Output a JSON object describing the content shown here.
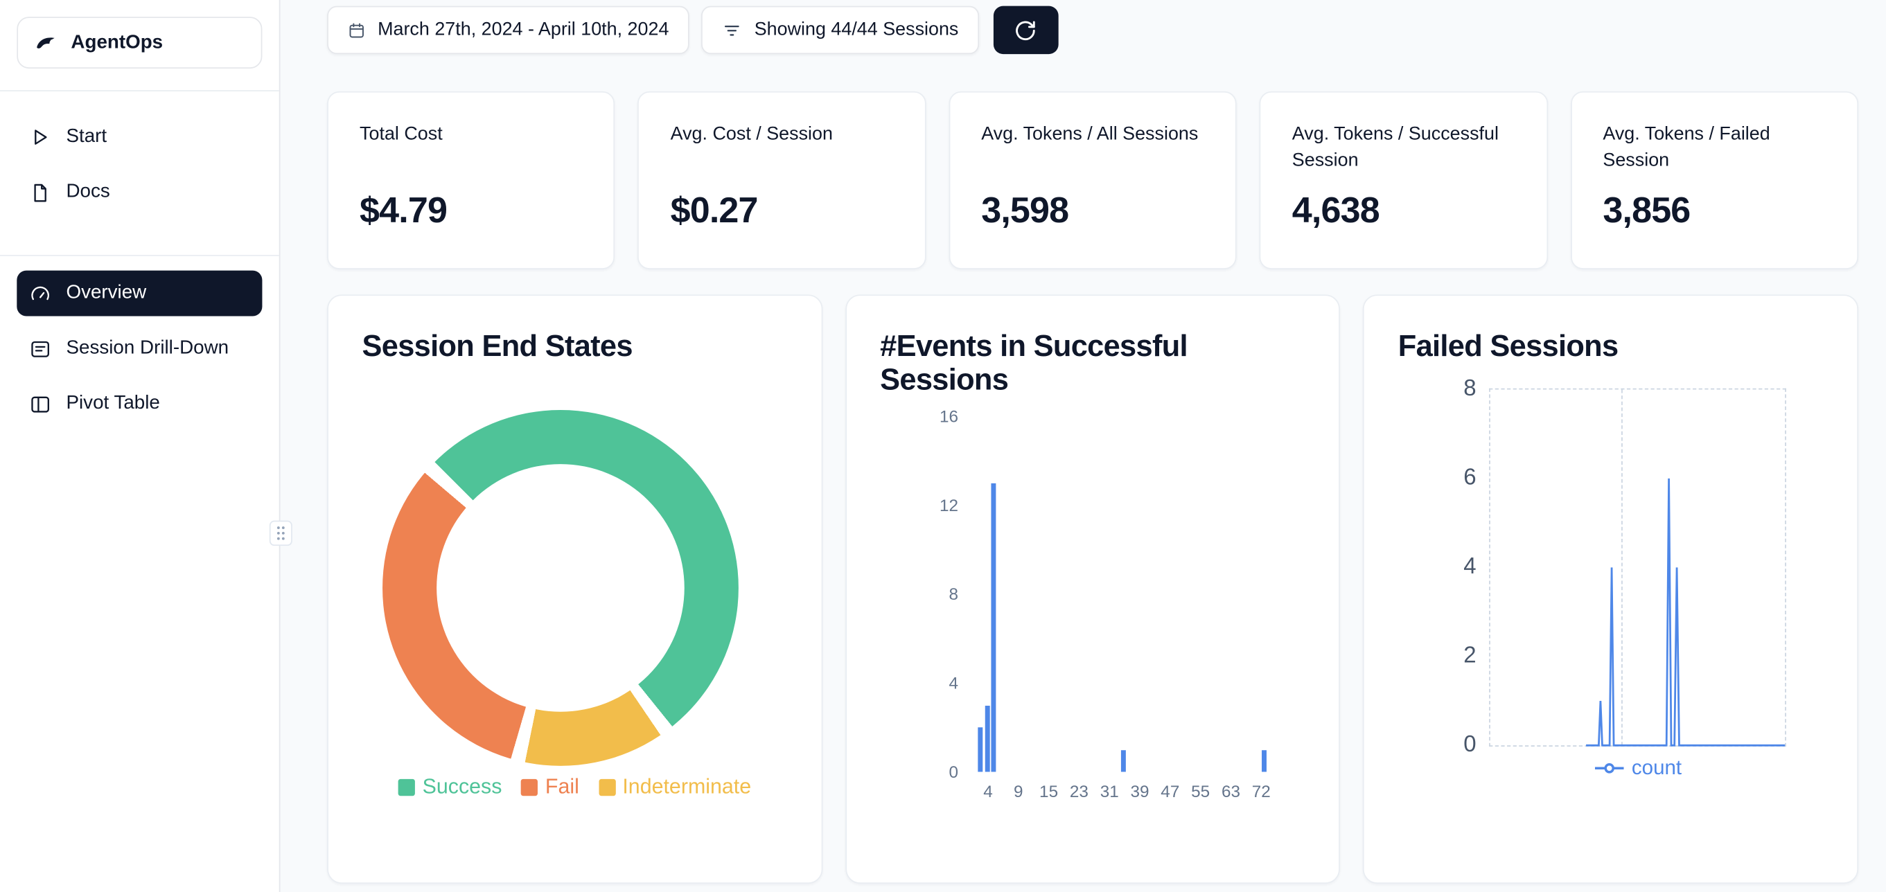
{
  "app": {
    "name": "AgentOps"
  },
  "sidebar": {
    "top_items": [
      {
        "label": "Start",
        "icon": "play-icon"
      },
      {
        "label": "Docs",
        "icon": "docs-icon"
      }
    ],
    "main_items": [
      {
        "label": "Overview",
        "icon": "gauge-icon",
        "active": true
      },
      {
        "label": "Session Drill-Down",
        "icon": "drilldown-icon",
        "active": false
      },
      {
        "label": "Pivot Table",
        "icon": "pivot-table-icon",
        "active": false
      }
    ]
  },
  "toolbar": {
    "date_range": "March 27th, 2024 - April 10th, 2024",
    "filter_label": "Showing 44/44 Sessions"
  },
  "stats": [
    {
      "label": "Total Cost",
      "value": "$4.79"
    },
    {
      "label": "Avg. Cost / Session",
      "value": "$0.27"
    },
    {
      "label": "Avg. Tokens / All Sessions",
      "value": "3,598"
    },
    {
      "label": "Avg. Tokens / Successful Session",
      "value": "4,638"
    },
    {
      "label": "Avg. Tokens / Failed Session",
      "value": "3,856"
    }
  ],
  "theme": {
    "dark": "#0f172a",
    "blue": "#4e87e8"
  },
  "chart_data": [
    {
      "type": "pie",
      "title": "Session End States",
      "labels": [
        "Success",
        "Fail",
        "Indeterminate"
      ],
      "values": [
        53,
        33,
        14
      ],
      "colors": [
        "#4fc398",
        "#ee8251",
        "#f2bd4b"
      ],
      "draw_order": [
        0,
        2,
        1
      ],
      "start_deg": 315,
      "gap_pct": 1.3,
      "donut": true,
      "legend_position": "bottom"
    },
    {
      "type": "bar",
      "title": "#Events in Successful Sessions",
      "x_tick_labels": [
        "4",
        "9",
        "15",
        "23",
        "31",
        "39",
        "47",
        "55",
        "63",
        "72"
      ],
      "yticks": [
        0,
        4,
        8,
        12,
        16
      ],
      "ylim": [
        0,
        16
      ],
      "bars": [
        [
          0.028,
          2
        ],
        [
          0.05,
          3
        ],
        [
          0.066,
          13
        ],
        [
          0.43,
          1
        ],
        [
          0.827,
          1
        ]
      ],
      "color": "#4e87e8",
      "grid": false
    },
    {
      "type": "line",
      "title": "Failed Sessions",
      "yticks": [
        0,
        2,
        4,
        6,
        8
      ],
      "ylim": [
        0,
        8
      ],
      "series": [
        {
          "name": "count",
          "points": [
            [
              0.325,
              0
            ],
            [
              0.368,
              0
            ],
            [
              0.374,
              1
            ],
            [
              0.38,
              0
            ],
            [
              0.405,
              0
            ],
            [
              0.412,
              4
            ],
            [
              0.419,
              0
            ],
            [
              0.598,
              0
            ],
            [
              0.606,
              6
            ],
            [
              0.614,
              0
            ],
            [
              0.625,
              0
            ],
            [
              0.633,
              4
            ],
            [
              0.641,
              0
            ],
            [
              1,
              0
            ]
          ]
        }
      ],
      "color": "#4e87e8",
      "grid": "dashed",
      "legend_position": "bottom",
      "legend": [
        "count"
      ]
    }
  ]
}
